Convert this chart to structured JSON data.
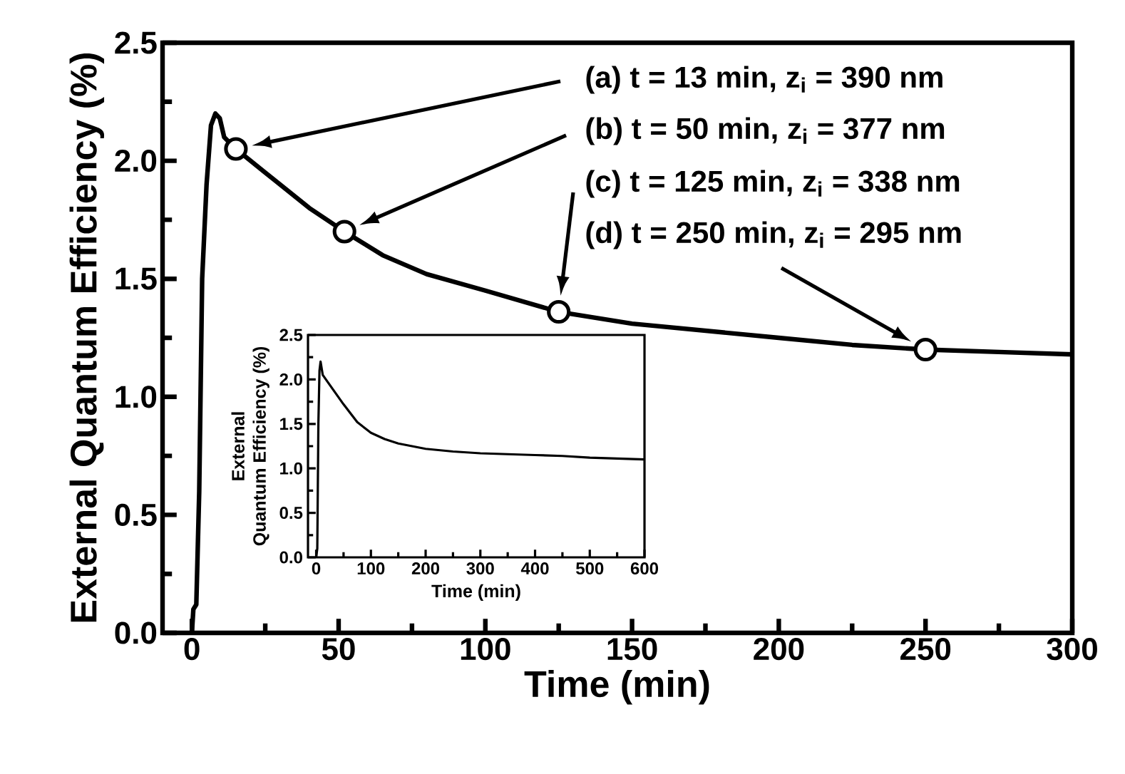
{
  "chart_data": [
    {
      "type": "line",
      "xlabel": "Time (min)",
      "ylabel": "External Quantum Efficiency (%)",
      "xlim": [
        -10,
        300
      ],
      "ylim": [
        0,
        2.5
      ],
      "xticks": [
        0,
        50,
        100,
        150,
        200,
        250,
        300
      ],
      "yticks": [
        {
          "value": 0,
          "label": "0.0"
        },
        0.5,
        {
          "value": 1,
          "label": "1.0"
        },
        1.5,
        {
          "value": 2,
          "label": "2.0"
        },
        2.5
      ],
      "series": [
        {
          "color": "#000000",
          "marker": "none",
          "x": [
            0,
            0.5,
            1.5,
            2.5,
            3.5,
            5,
            6.5,
            8,
            9.5,
            11,
            15,
            25,
            40,
            52,
            65,
            80,
            100,
            125,
            150,
            175,
            200,
            225,
            250,
            275,
            300
          ],
          "values": [
            0,
            0.1,
            0.12,
            0.6,
            1.5,
            1.9,
            2.15,
            2.2,
            2.18,
            2.1,
            2.05,
            1.95,
            1.8,
            1.7,
            1.6,
            1.52,
            1.45,
            1.36,
            1.31,
            1.28,
            1.25,
            1.22,
            1.2,
            1.19,
            1.18
          ]
        },
        {
          "type": "scatter",
          "color": "#000000",
          "marker": "circle",
          "x": [
            15,
            52,
            125,
            250
          ],
          "values": [
            2.05,
            1.7,
            1.36,
            1.2
          ]
        }
      ],
      "annotations": [
        "(a) t = 13 min, z$_{i}$ = 390 nm",
        "(b) t = 50 min, z$_{i}$ = 377 nm",
        "(c) t = 125 min, z$_{i}$ = 338 nm",
        "(d) t = 250 min, z$_{i}$ = 295 nm"
      ]
    },
    {
      "type": "line",
      "xlabel": "Time (min)",
      "ylabel": "External Quantum Efficiency (%)",
      "xlim": [
        -15,
        600
      ],
      "ylim": [
        0,
        2.5
      ],
      "xticks": [
        0,
        100,
        200,
        300,
        400,
        500,
        600
      ],
      "yticks": [
        {
          "value": 0,
          "label": "0.0"
        },
        0.5,
        {
          "value": 1,
          "label": "1.0"
        },
        1.5,
        {
          "value": 2,
          "label": "2.0"
        },
        2.5
      ],
      "series": [
        {
          "color": "#000000",
          "marker": "none",
          "x": [
            0,
            2,
            4,
            6,
            8,
            12,
            20,
            35,
            50,
            75,
            100,
            125,
            150,
            200,
            250,
            300,
            350,
            400,
            450,
            500,
            550,
            600
          ],
          "values": [
            0,
            0.1,
            1.5,
            2.1,
            2.2,
            2.05,
            1.98,
            1.85,
            1.72,
            1.52,
            1.4,
            1.33,
            1.28,
            1.22,
            1.19,
            1.17,
            1.16,
            1.15,
            1.14,
            1.12,
            1.11,
            1.1
          ]
        }
      ]
    }
  ]
}
